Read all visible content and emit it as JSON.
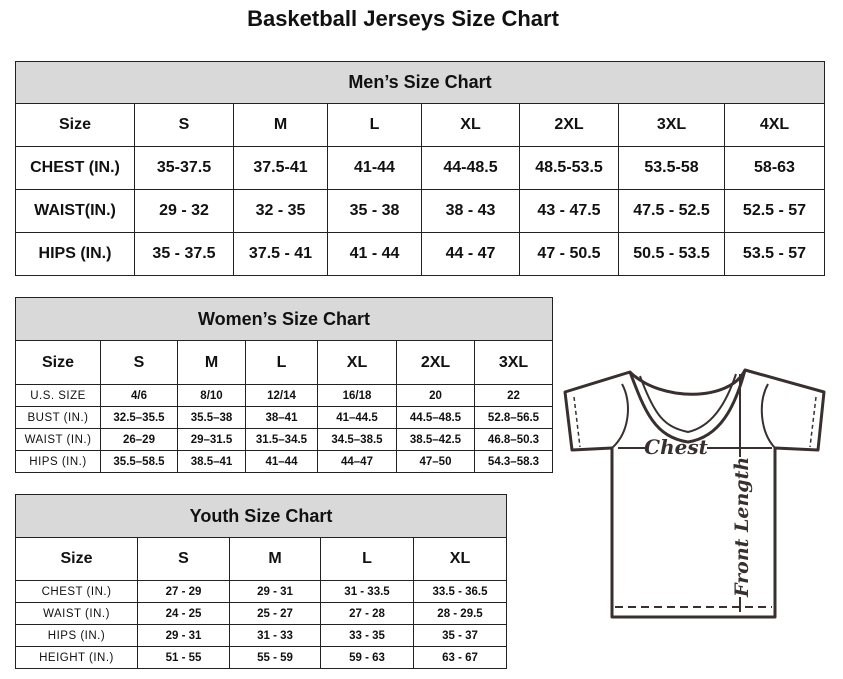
{
  "title": "Basketball Jerseys Size Chart",
  "men": {
    "title": "Men’s Size Chart",
    "header": [
      "Size",
      "S",
      "M",
      "L",
      "XL",
      "2XL",
      "3XL",
      "4XL"
    ],
    "rows": [
      [
        "CHEST (IN.)",
        "35-37.5",
        "37.5-41",
        "41-44",
        "44-48.5",
        "48.5-53.5",
        "53.5-58",
        "58-63"
      ],
      [
        "WAIST(IN.)",
        "29 - 32",
        "32 - 35",
        "35 - 38",
        "38 - 43",
        "43 - 47.5",
        "47.5 - 52.5",
        "52.5 - 57"
      ],
      [
        "HIPS (IN.)",
        "35 - 37.5",
        "37.5 - 41",
        "41 - 44",
        "44 - 47",
        "47 - 50.5",
        "50.5 - 53.5",
        "53.5 - 57"
      ]
    ]
  },
  "women": {
    "title": "Women’s Size Chart",
    "header": [
      "Size",
      "S",
      "M",
      "L",
      "XL",
      "2XL",
      "3XL"
    ],
    "rows": [
      [
        "U.S. SIZE",
        "4/6",
        "8/10",
        "12/14",
        "16/18",
        "20",
        "22"
      ],
      [
        "BUST (IN.)",
        "32.5–35.5",
        "35.5–38",
        "38–41",
        "41–44.5",
        "44.5–48.5",
        "52.8–56.5"
      ],
      [
        "WAIST (IN.)",
        "26–29",
        "29–31.5",
        "31.5–34.5",
        "34.5–38.5",
        "38.5–42.5",
        "46.8–50.3"
      ],
      [
        "HIPS (IN.)",
        "35.5–58.5",
        "38.5–41",
        "41–44",
        "44–47",
        "47–50",
        "54.3–58.3"
      ]
    ]
  },
  "youth": {
    "title": "Youth Size Chart",
    "header": [
      "Size",
      "S",
      "M",
      "L",
      "XL"
    ],
    "rows": [
      [
        "CHEST (IN.)",
        "27 - 29",
        "29 - 31",
        "31 - 33.5",
        "33.5 - 36.5"
      ],
      [
        "WAIST (IN.)",
        "24 - 25",
        "25 - 27",
        "27 - 28",
        "28 - 29.5"
      ],
      [
        "HIPS (IN.)",
        "29 - 31",
        "31 - 33",
        "33 - 35",
        "35 - 37"
      ],
      [
        "HEIGHT (IN.)",
        "51 - 55",
        "55 - 59",
        "59 - 63",
        "63 - 67"
      ]
    ]
  },
  "diagram": {
    "chest_label": "Chest",
    "length_label": "Front Length"
  }
}
